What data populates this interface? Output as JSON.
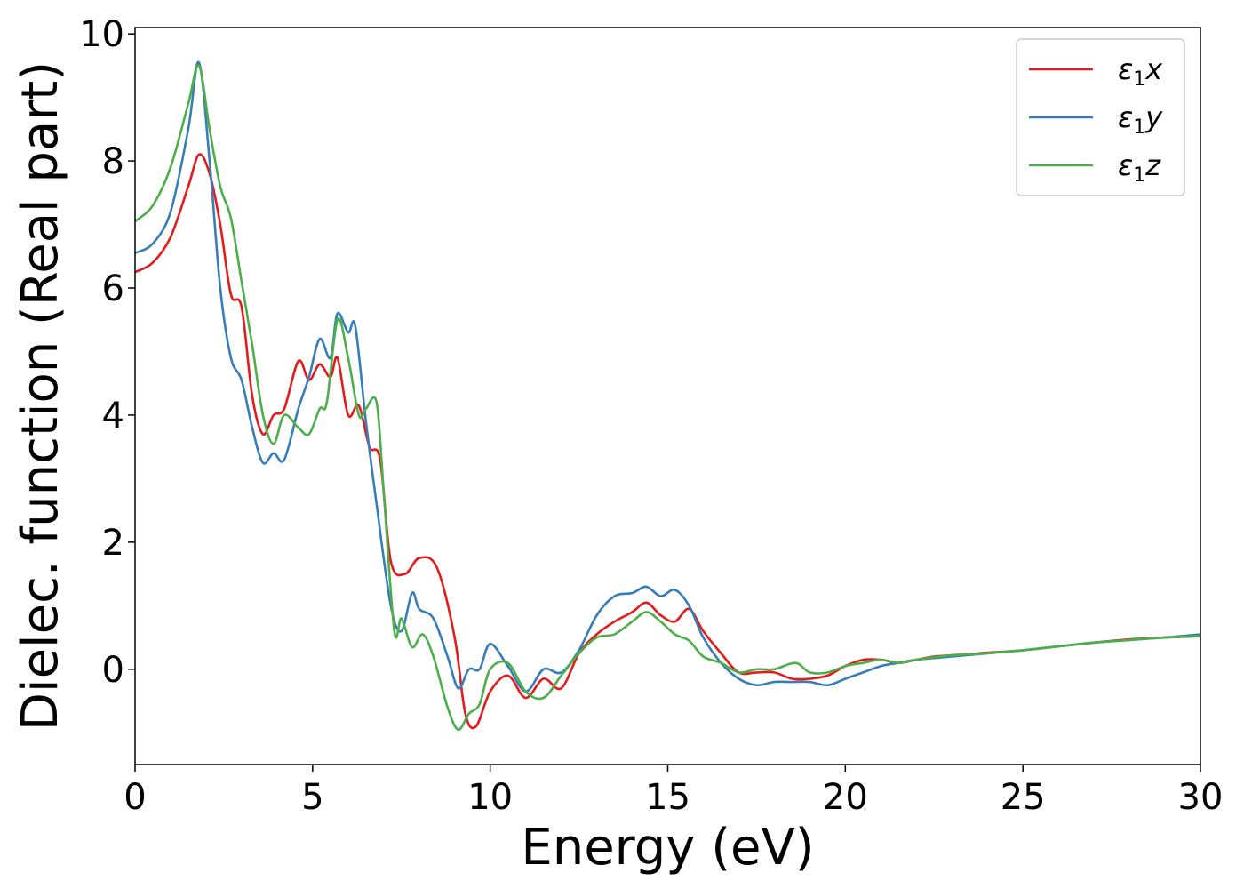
{
  "chart_data": {
    "type": "line",
    "title": "",
    "xlabel": "Energy (eV)",
    "ylabel": "Dielec. function (Real part)",
    "xlim": [
      0,
      30
    ],
    "ylim": [
      -1.5,
      10.1
    ],
    "xticks": [
      0,
      5,
      10,
      15,
      20,
      25,
      30
    ],
    "yticks": [
      0,
      2,
      4,
      6,
      8,
      10
    ],
    "grid": false,
    "legend_position": "top-right",
    "series": [
      {
        "name": "ε1x",
        "legend": {
          "base": "ε",
          "sub": "1",
          "suffix": "x"
        },
        "color": "#e41a1c",
        "x": [
          0,
          0.5,
          1.0,
          1.5,
          1.8,
          2.1,
          2.4,
          2.7,
          3.0,
          3.3,
          3.6,
          3.9,
          4.2,
          4.6,
          4.9,
          5.2,
          5.5,
          5.7,
          6.0,
          6.3,
          6.6,
          6.9,
          7.2,
          7.6,
          8.0,
          8.5,
          9.0,
          9.3,
          9.6,
          10.0,
          10.5,
          11.0,
          11.5,
          12.0,
          12.5,
          13.0,
          13.5,
          14.0,
          14.4,
          14.8,
          15.2,
          15.6,
          16.0,
          16.5,
          17.0,
          17.5,
          18.0,
          18.5,
          19.0,
          19.5,
          20.0,
          20.5,
          21.0,
          21.5,
          22.0,
          22.5,
          23.0,
          24.0,
          25.0,
          26.0,
          27.0,
          28.0,
          29.0,
          30.0
        ],
        "values": [
          6.25,
          6.4,
          6.8,
          7.6,
          8.1,
          7.8,
          7.0,
          5.9,
          5.7,
          4.3,
          3.7,
          4.0,
          4.1,
          4.85,
          4.55,
          4.8,
          4.6,
          4.9,
          4.0,
          4.15,
          3.5,
          3.3,
          1.7,
          1.5,
          1.75,
          1.6,
          0.5,
          -0.7,
          -0.9,
          -0.35,
          -0.1,
          -0.45,
          -0.15,
          -0.3,
          0.25,
          0.55,
          0.75,
          0.9,
          1.05,
          0.85,
          0.75,
          0.95,
          0.6,
          0.25,
          -0.05,
          -0.05,
          -0.05,
          -0.15,
          -0.15,
          -0.1,
          0.05,
          0.15,
          0.15,
          0.1,
          0.15,
          0.2,
          0.22,
          0.26,
          0.3,
          0.36,
          0.42,
          0.47,
          0.5,
          0.52
        ]
      },
      {
        "name": "ε1y",
        "legend": {
          "base": "ε",
          "sub": "1",
          "suffix": "y"
        },
        "color": "#377eb8",
        "x": [
          0,
          0.5,
          1.0,
          1.5,
          1.8,
          2.1,
          2.4,
          2.7,
          3.0,
          3.3,
          3.6,
          3.9,
          4.2,
          4.6,
          4.9,
          5.2,
          5.5,
          5.7,
          6.0,
          6.2,
          6.5,
          6.8,
          7.2,
          7.5,
          7.8,
          8.0,
          8.4,
          8.8,
          9.1,
          9.4,
          9.7,
          10.0,
          10.5,
          11.0,
          11.5,
          12.0,
          12.5,
          13.0,
          13.5,
          14.0,
          14.4,
          14.8,
          15.2,
          15.6,
          16.0,
          16.5,
          17.0,
          17.5,
          18.0,
          18.5,
          19.0,
          19.5,
          20.0,
          20.5,
          21.0,
          21.5,
          22.0,
          23.0,
          24.0,
          25.0,
          26.0,
          27.0,
          28.0,
          29.0,
          30.0
        ],
        "values": [
          6.55,
          6.7,
          7.2,
          8.5,
          9.55,
          8.0,
          6.0,
          4.9,
          4.55,
          3.8,
          3.25,
          3.4,
          3.3,
          4.1,
          4.6,
          5.2,
          4.9,
          5.6,
          5.3,
          5.4,
          3.9,
          2.6,
          1.0,
          0.6,
          1.2,
          0.95,
          0.8,
          0.2,
          -0.3,
          0.0,
          0.0,
          0.4,
          0.05,
          -0.35,
          0.0,
          -0.05,
          0.3,
          0.85,
          1.15,
          1.2,
          1.3,
          1.15,
          1.25,
          1.0,
          0.5,
          0.1,
          -0.15,
          -0.25,
          -0.2,
          -0.2,
          -0.2,
          -0.25,
          -0.15,
          -0.05,
          0.05,
          0.1,
          0.15,
          0.2,
          0.25,
          0.3,
          0.36,
          0.42,
          0.46,
          0.5,
          0.55
        ]
      },
      {
        "name": "ε1z",
        "legend": {
          "base": "ε",
          "sub": "1",
          "suffix": "z"
        },
        "color": "#4daf4a",
        "x": [
          0,
          0.5,
          1.0,
          1.5,
          1.8,
          2.1,
          2.4,
          2.7,
          3.0,
          3.3,
          3.6,
          3.9,
          4.2,
          4.6,
          4.9,
          5.2,
          5.4,
          5.7,
          6.0,
          6.3,
          6.5,
          6.8,
          7.0,
          7.3,
          7.5,
          7.8,
          8.1,
          8.4,
          8.8,
          9.1,
          9.4,
          9.7,
          10.0,
          10.5,
          11.0,
          11.5,
          12.0,
          12.5,
          13.0,
          13.5,
          14.0,
          14.4,
          14.8,
          15.2,
          15.6,
          16.0,
          16.5,
          17.0,
          17.5,
          18.0,
          18.6,
          19.0,
          19.5,
          20.0,
          20.5,
          21.0,
          21.5,
          22.0,
          23.0,
          24.0,
          25.0,
          26.0,
          27.0,
          28.0,
          29.0,
          30.0
        ],
        "values": [
          7.05,
          7.3,
          7.9,
          8.9,
          9.5,
          8.5,
          7.6,
          7.1,
          6.1,
          5.1,
          4.0,
          3.55,
          4.0,
          3.8,
          3.7,
          4.1,
          4.2,
          5.5,
          4.9,
          4.0,
          4.1,
          4.2,
          2.8,
          0.6,
          0.8,
          0.35,
          0.55,
          0.2,
          -0.6,
          -0.95,
          -0.7,
          -0.55,
          0.0,
          0.1,
          -0.35,
          -0.45,
          -0.1,
          0.25,
          0.5,
          0.55,
          0.75,
          0.9,
          0.75,
          0.55,
          0.45,
          0.2,
          0.1,
          -0.05,
          0.0,
          0.0,
          0.1,
          -0.05,
          -0.05,
          0.05,
          0.1,
          0.15,
          0.1,
          0.15,
          0.22,
          0.25,
          0.3,
          0.36,
          0.42,
          0.46,
          0.5,
          0.52
        ]
      }
    ]
  }
}
